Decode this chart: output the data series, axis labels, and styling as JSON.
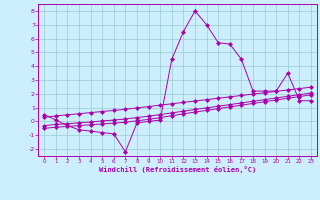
{
  "xlabel": "Windchill (Refroidissement éolien,°C)",
  "x": [
    0,
    1,
    2,
    3,
    4,
    5,
    6,
    7,
    8,
    9,
    10,
    11,
    12,
    13,
    14,
    15,
    16,
    17,
    18,
    19,
    20,
    21,
    22,
    23
  ],
  "y_main": [
    0.5,
    0.1,
    -0.3,
    -0.6,
    -0.7,
    -0.8,
    -0.9,
    -2.2,
    -0.1,
    0.0,
    0.1,
    4.5,
    6.5,
    8.0,
    7.0,
    5.7,
    5.6,
    4.5,
    2.2,
    2.2,
    2.2,
    3.5,
    1.5,
    1.5
  ],
  "y_line1": [
    -0.5,
    -0.42,
    -0.36,
    -0.3,
    -0.24,
    -0.18,
    -0.12,
    -0.06,
    0.05,
    0.15,
    0.28,
    0.42,
    0.55,
    0.68,
    0.8,
    0.93,
    1.05,
    1.18,
    1.3,
    1.43,
    1.55,
    1.68,
    1.8,
    1.93
  ],
  "y_line2": [
    -0.3,
    -0.22,
    -0.16,
    -0.1,
    -0.04,
    0.04,
    0.1,
    0.18,
    0.28,
    0.38,
    0.5,
    0.62,
    0.74,
    0.87,
    0.98,
    1.1,
    1.22,
    1.34,
    1.46,
    1.58,
    1.7,
    1.82,
    1.94,
    2.06
  ],
  "y_line3": [
    0.3,
    0.4,
    0.48,
    0.56,
    0.64,
    0.72,
    0.8,
    0.88,
    0.98,
    1.08,
    1.18,
    1.28,
    1.38,
    1.48,
    1.58,
    1.68,
    1.78,
    1.88,
    1.98,
    2.08,
    2.18,
    2.28,
    2.38,
    2.48
  ],
  "line_color": "#aa00aa",
  "bg_color": "#cceeff",
  "grid_color": "#99cccc",
  "ylim": [
    -2.5,
    8.5
  ],
  "xlim": [
    -0.5,
    23.5
  ],
  "yticks": [
    -2,
    -1,
    0,
    1,
    2,
    3,
    4,
    5,
    6,
    7,
    8
  ],
  "xticks": [
    0,
    1,
    2,
    3,
    4,
    5,
    6,
    7,
    8,
    9,
    10,
    11,
    12,
    13,
    14,
    15,
    16,
    17,
    18,
    19,
    20,
    21,
    22,
    23
  ]
}
